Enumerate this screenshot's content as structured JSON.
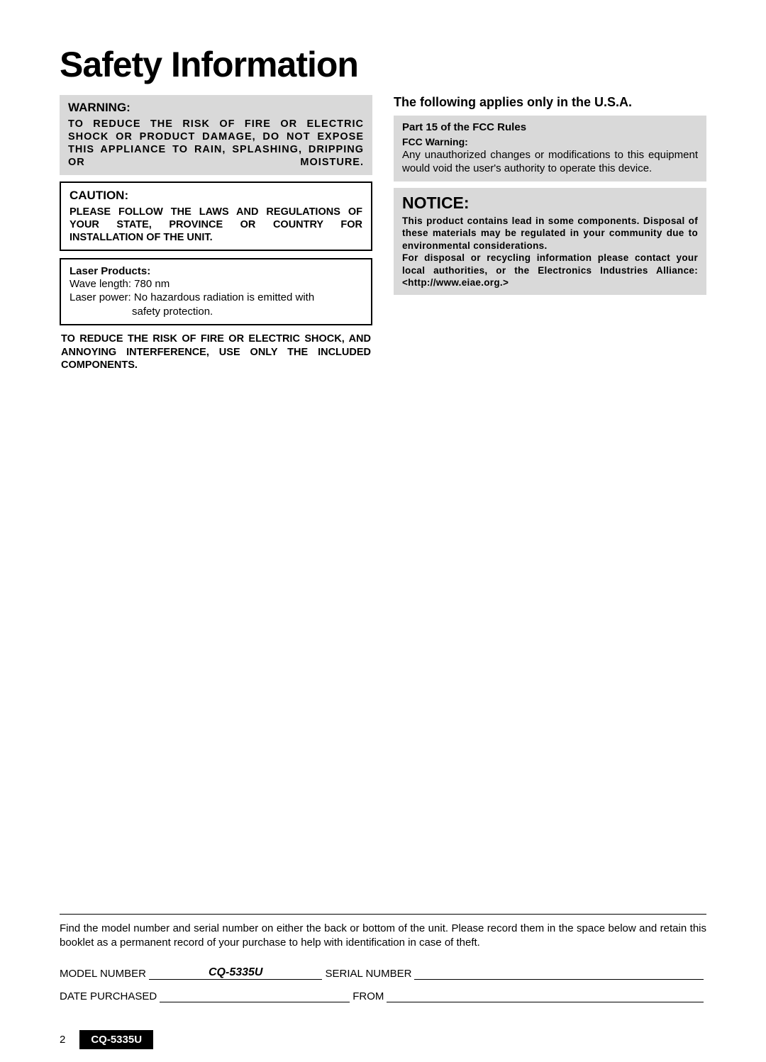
{
  "title": "Safety Information",
  "left": {
    "warning": {
      "heading": "WARNING:",
      "body": "TO REDUCE THE RISK OF FIRE OR ELECTRIC SHOCK OR PRODUCT DAMAGE, DO NOT EXPOSE THIS APPLIANCE TO RAIN, SPLASHING, DRIPPING OR MOISTURE."
    },
    "caution": {
      "heading": "CAUTION:",
      "body": "PLEASE FOLLOW THE LAWS AND REGULATIONS OF YOUR STATE, PROVINCE OR COUNTRY FOR INSTALLATION OF THE UNIT."
    },
    "laser": {
      "heading": "Laser Products:",
      "wave": "Wave length: 780 nm",
      "power": "Laser power: No hazardous radiation is emitted with",
      "power2": "safety protection."
    },
    "components": "TO REDUCE THE RISK OF FIRE OR ELECTRIC SHOCK, AND ANNOYING INTERFERENCE, USE ONLY THE INCLUDED COMPONENTS."
  },
  "right": {
    "usa_heading": "The following applies only in the U.S.A.",
    "fcc": {
      "subheading": "Part 15 of the FCC Rules",
      "warning_label": "FCC Warning:",
      "body": "Any unauthorized changes or modifications to this equipment would void the user's authority to operate this device."
    },
    "notice": {
      "heading": "NOTICE:",
      "body": "This product contains lead in some components. Disposal of these materials may be regulated in your community due to environmental considerations.\nFor disposal or recycling information please contact your local authorities, or the Electronics Industries Alliance: <http://www.eiae.org.>"
    }
  },
  "bottom": {
    "instruction": "Find the model number and serial number on either the back or bottom of the unit. Please record them in the space below and retain this booklet as a permanent record of your purchase to help with identification in case of theft.",
    "model_label": "MODEL NUMBER",
    "model_value": "CQ-5335U",
    "serial_label": "SERIAL NUMBER",
    "date_label": "DATE PURCHASED",
    "from_label": "FROM"
  },
  "footer": {
    "page_number": "2",
    "model_tag": "CQ-5335U"
  }
}
